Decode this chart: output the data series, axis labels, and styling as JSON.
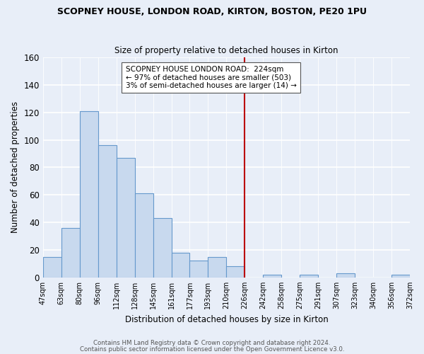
{
  "title": "SCOPNEY HOUSE, LONDON ROAD, KIRTON, BOSTON, PE20 1PU",
  "subtitle": "Size of property relative to detached houses in Kirton",
  "xlabel": "Distribution of detached houses by size in Kirton",
  "ylabel": "Number of detached properties",
  "bin_labels": [
    "47sqm",
    "63sqm",
    "80sqm",
    "96sqm",
    "112sqm",
    "128sqm",
    "145sqm",
    "161sqm",
    "177sqm",
    "193sqm",
    "210sqm",
    "226sqm",
    "242sqm",
    "258sqm",
    "275sqm",
    "291sqm",
    "307sqm",
    "323sqm",
    "340sqm",
    "356sqm",
    "372sqm"
  ],
  "bar_values": [
    15,
    36,
    121,
    96,
    87,
    61,
    43,
    18,
    12,
    15,
    8,
    0,
    2,
    0,
    2,
    0,
    3,
    0,
    0,
    2
  ],
  "bar_color": "#c8d9ee",
  "bar_edge_color": "#6699cc",
  "vline_x_idx": 11,
  "vline_color": "#bb0000",
  "annotation_text": "SCOPNEY HOUSE LONDON ROAD:  224sqm\n← 97% of detached houses are smaller (503)\n3% of semi-detached houses are larger (14) →",
  "annotation_box_color": "#ffffff",
  "annotation_box_edge": "#555555",
  "ylim": [
    0,
    160
  ],
  "yticks": [
    0,
    20,
    40,
    60,
    80,
    100,
    120,
    140,
    160
  ],
  "footer1": "Contains HM Land Registry data © Crown copyright and database right 2024.",
  "footer2": "Contains public sector information licensed under the Open Government Licence v3.0.",
  "background_color": "#e8eef8"
}
